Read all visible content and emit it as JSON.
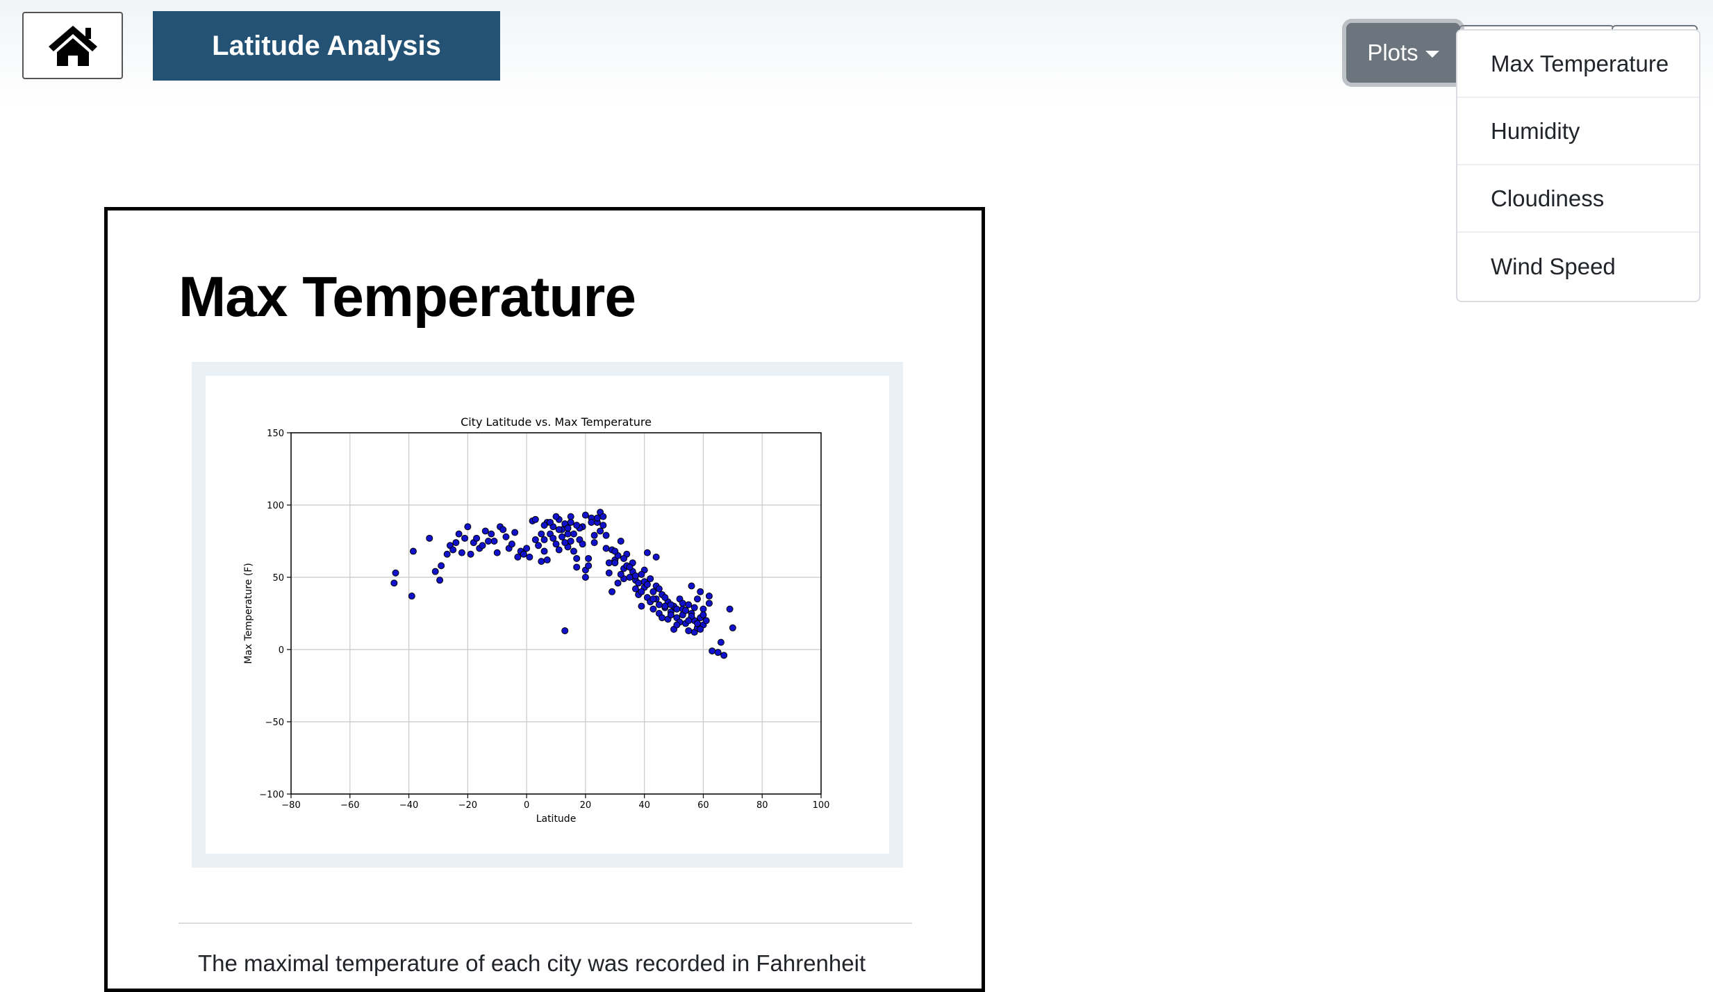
{
  "navbar": {
    "home_icon": "home-icon",
    "brand": "Latitude Analysis",
    "plots_label": "Plots",
    "plots_menu": [
      "Max Temperature",
      "Humidity",
      "Cloudiness",
      "Wind Speed"
    ]
  },
  "card": {
    "title": "Max Temperature",
    "description": "The maximal temperature of each city was recorded in Fahrenheit"
  },
  "colors": {
    "brand": "#245275",
    "plots_button": "#6c757d",
    "marker": "#1111cc"
  },
  "chart_data": {
    "type": "scatter",
    "title": "City Latitude vs. Max Temperature",
    "xlabel": "Latitude",
    "ylabel": "Max Temperature (F)",
    "xlim": [
      -80,
      100
    ],
    "ylim": [
      -100,
      150
    ],
    "xticks": [
      -80,
      -60,
      -40,
      -20,
      0,
      20,
      40,
      60,
      80,
      100
    ],
    "yticks": [
      -100,
      -50,
      0,
      50,
      100,
      150
    ],
    "grid": true,
    "points": [
      [
        -45,
        46
      ],
      [
        -44.5,
        53
      ],
      [
        -39,
        37
      ],
      [
        -38.5,
        68
      ],
      [
        -33,
        77
      ],
      [
        -31,
        54
      ],
      [
        -29,
        58
      ],
      [
        -29.5,
        48
      ],
      [
        -27,
        66
      ],
      [
        -26,
        72
      ],
      [
        -25,
        69
      ],
      [
        -24,
        74
      ],
      [
        -23,
        80
      ],
      [
        -22,
        67
      ],
      [
        -21,
        77
      ],
      [
        -20,
        85
      ],
      [
        -19,
        66
      ],
      [
        -18,
        74
      ],
      [
        -16,
        70
      ],
      [
        -15,
        72
      ],
      [
        -14,
        82
      ],
      [
        -12,
        80
      ],
      [
        -11,
        75
      ],
      [
        -10,
        67
      ],
      [
        -9,
        85
      ],
      [
        -8,
        83
      ],
      [
        -7,
        78
      ],
      [
        -6,
        70
      ],
      [
        -5,
        73
      ],
      [
        -3,
        64
      ],
      [
        -2,
        68
      ],
      [
        -1,
        66
      ],
      [
        1,
        64
      ],
      [
        2,
        89
      ],
      [
        3,
        90
      ],
      [
        4,
        72
      ],
      [
        5,
        61
      ],
      [
        6,
        76
      ],
      [
        7,
        62
      ],
      [
        7,
        88
      ],
      [
        8,
        80
      ],
      [
        9,
        85
      ],
      [
        10,
        73
      ],
      [
        11,
        90
      ],
      [
        12,
        78
      ],
      [
        13,
        87
      ],
      [
        14,
        71
      ],
      [
        15,
        92
      ],
      [
        16,
        80
      ],
      [
        17,
        63
      ],
      [
        17,
        57
      ],
      [
        18,
        76
      ],
      [
        19,
        85
      ],
      [
        20,
        55
      ],
      [
        20,
        50
      ],
      [
        21,
        63
      ],
      [
        22,
        91
      ],
      [
        23,
        74
      ],
      [
        24,
        88
      ],
      [
        25,
        95
      ],
      [
        26,
        86
      ],
      [
        27,
        79
      ],
      [
        28,
        53
      ],
      [
        29,
        40
      ],
      [
        30,
        62
      ],
      [
        31,
        65
      ],
      [
        31,
        46
      ],
      [
        32,
        75
      ],
      [
        33,
        56
      ],
      [
        33,
        49
      ],
      [
        34,
        58
      ],
      [
        35,
        50
      ],
      [
        36,
        60
      ],
      [
        37,
        48
      ],
      [
        37,
        42
      ],
      [
        38,
        38
      ],
      [
        39,
        30
      ],
      [
        40,
        43
      ],
      [
        40,
        55
      ],
      [
        41,
        67
      ],
      [
        41,
        36
      ],
      [
        42,
        33
      ],
      [
        43,
        40
      ],
      [
        43,
        28
      ],
      [
        44,
        64
      ],
      [
        44,
        35
      ],
      [
        45,
        31
      ],
      [
        45,
        25
      ],
      [
        46,
        38
      ],
      [
        46,
        22
      ],
      [
        47,
        29
      ],
      [
        48,
        33
      ],
      [
        48,
        21
      ],
      [
        49,
        26
      ],
      [
        50,
        30
      ],
      [
        50,
        14
      ],
      [
        51,
        22
      ],
      [
        52,
        35
      ],
      [
        52,
        19
      ],
      [
        53,
        28
      ],
      [
        53,
        24
      ],
      [
        54,
        18
      ],
      [
        55,
        31
      ],
      [
        55,
        13
      ],
      [
        56,
        44
      ],
      [
        56,
        25
      ],
      [
        57,
        20
      ],
      [
        57,
        12
      ],
      [
        58,
        35
      ],
      [
        58,
        15
      ],
      [
        59,
        40
      ],
      [
        59,
        22
      ],
      [
        60,
        28
      ],
      [
        60,
        17
      ],
      [
        61,
        20
      ],
      [
        62,
        37
      ],
      [
        62,
        32
      ],
      [
        63,
        -1
      ],
      [
        65,
        -2
      ],
      [
        66,
        5
      ],
      [
        67,
        -4
      ],
      [
        69,
        28
      ],
      [
        70,
        15
      ],
      [
        13,
        13
      ],
      [
        5,
        80
      ],
      [
        8,
        88
      ],
      [
        10,
        92
      ],
      [
        12,
        83
      ],
      [
        14,
        80
      ],
      [
        15,
        75
      ],
      [
        16,
        68
      ],
      [
        18,
        84
      ],
      [
        20,
        93
      ],
      [
        22,
        88
      ],
      [
        24,
        91
      ],
      [
        26,
        92
      ],
      [
        27,
        70
      ],
      [
        29,
        69
      ],
      [
        30,
        60
      ],
      [
        32,
        52
      ],
      [
        34,
        66
      ],
      [
        36,
        54
      ],
      [
        38,
        46
      ],
      [
        39,
        52
      ],
      [
        40,
        47
      ],
      [
        42,
        49
      ],
      [
        44,
        44
      ],
      [
        47,
        36
      ],
      [
        49,
        31
      ],
      [
        51,
        28
      ],
      [
        54,
        27
      ],
      [
        56,
        23
      ],
      [
        58,
        18
      ],
      [
        60,
        24
      ],
      [
        6,
        86
      ],
      [
        9,
        77
      ],
      [
        11,
        83
      ],
      [
        13,
        74
      ],
      [
        15,
        88
      ],
      [
        17,
        86
      ],
      [
        19,
        73
      ],
      [
        21,
        58
      ],
      [
        23,
        79
      ],
      [
        25,
        82
      ],
      [
        28,
        60
      ],
      [
        30,
        68
      ],
      [
        33,
        63
      ],
      [
        35,
        57
      ],
      [
        37,
        51
      ],
      [
        39,
        40
      ],
      [
        41,
        45
      ],
      [
        43,
        35
      ],
      [
        45,
        42
      ],
      [
        47,
        30
      ],
      [
        49,
        24
      ],
      [
        51,
        17
      ],
      [
        53,
        32
      ],
      [
        55,
        20
      ],
      [
        57,
        29
      ],
      [
        59,
        14
      ],
      [
        -17,
        77
      ],
      [
        -13,
        75
      ],
      [
        -4,
        81
      ],
      [
        0,
        70
      ],
      [
        3,
        76
      ],
      [
        6,
        68
      ],
      [
        11,
        69
      ],
      [
        14,
        84
      ]
    ]
  }
}
